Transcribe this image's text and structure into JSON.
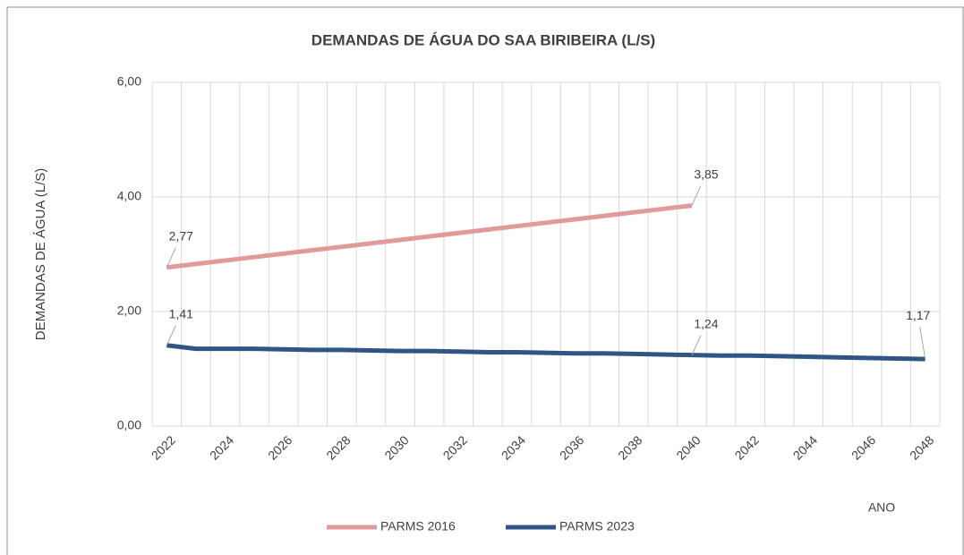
{
  "chart_data": {
    "type": "line",
    "title": "DEMANDAS DE ÁGUA DO SAA BIRIBEIRA (L/S)",
    "x_label": "ANO",
    "y_label": "DEMANDAS DE ÁGUA (L/S)",
    "categories": [
      "2022",
      null,
      "2024",
      null,
      "2026",
      null,
      "2028",
      null,
      "2030",
      null,
      "2032",
      null,
      "2034",
      null,
      "2036",
      null,
      "2038",
      null,
      "2040",
      null,
      "2042",
      null,
      "2044",
      null,
      "2046",
      null,
      "2048"
    ],
    "series": [
      {
        "name": "PARMS 2016",
        "color": "#e09a9a",
        "values": [
          2.77,
          2.83,
          2.89,
          2.95,
          3.01,
          3.07,
          3.13,
          3.19,
          3.25,
          3.31,
          3.37,
          3.43,
          3.49,
          3.55,
          3.61,
          3.67,
          3.73,
          3.79,
          3.85,
          null,
          null,
          null,
          null,
          null,
          null,
          null,
          null
        ],
        "value_labels": [
          "2,77",
          null,
          null,
          null,
          null,
          null,
          null,
          null,
          null,
          null,
          null,
          null,
          null,
          null,
          null,
          null,
          null,
          null,
          "3,85",
          null,
          null,
          null,
          null,
          null,
          null,
          null,
          null
        ]
      },
      {
        "name": "PARMS 2023",
        "color": "#2f5586",
        "values": [
          1.41,
          1.35,
          1.35,
          1.35,
          1.34,
          1.33,
          1.33,
          1.32,
          1.31,
          1.31,
          1.3,
          1.29,
          1.29,
          1.28,
          1.27,
          1.27,
          1.26,
          1.25,
          1.24,
          1.23,
          1.23,
          1.22,
          1.21,
          1.2,
          1.19,
          1.18,
          1.17
        ],
        "value_labels": [
          "1,41",
          null,
          null,
          null,
          null,
          null,
          null,
          null,
          null,
          null,
          null,
          null,
          null,
          null,
          null,
          null,
          null,
          null,
          "1,24",
          null,
          null,
          null,
          null,
          null,
          null,
          null,
          "1,17"
        ]
      }
    ],
    "ylim": [
      0,
      6
    ],
    "yticks": [
      {
        "value": 0,
        "label": "0,00"
      },
      {
        "value": 2,
        "label": "2,00"
      },
      {
        "value": 4,
        "label": "4,00"
      },
      {
        "value": 6,
        "label": "6,00"
      }
    ],
    "grid": true,
    "legend": "bottom"
  }
}
